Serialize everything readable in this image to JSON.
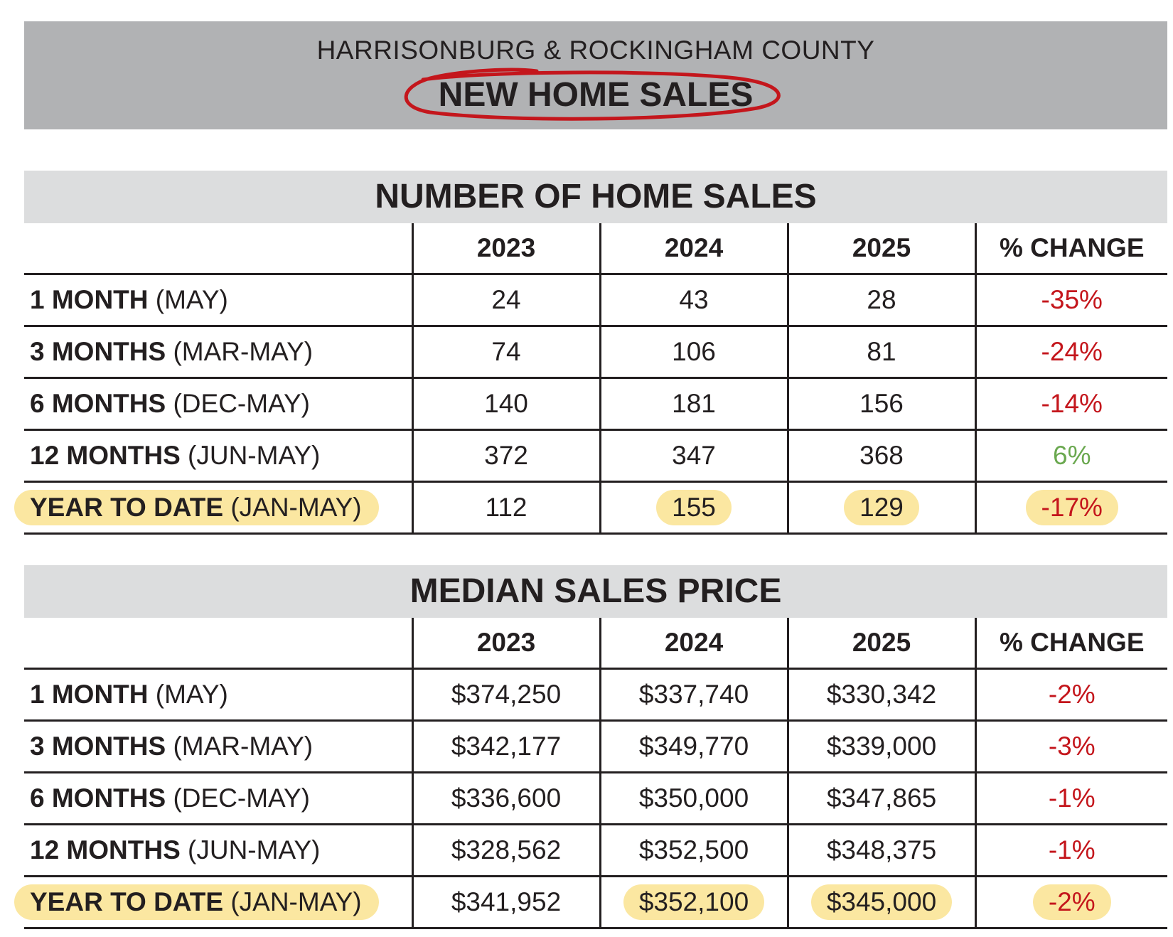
{
  "header": {
    "subtitle": "HARRISONBURG & ROCKINGHAM COUNTY",
    "title": "NEW HOME SALES"
  },
  "colors": {
    "negative": "#c4161c",
    "positive": "#6aa84f",
    "highlight": "#fbe7a1",
    "header_band": "#b1b2b4",
    "section_band": "#dcddde"
  },
  "tables": [
    {
      "title": "NUMBER OF HOME SALES",
      "columns": [
        "2023",
        "2024",
        "2025",
        "% CHANGE"
      ],
      "rows": [
        {
          "label_bold": "1 MONTH",
          "label_rest": " (MAY)",
          "values": [
            "24",
            "43",
            "28"
          ],
          "change": "-35%",
          "trend": "negative"
        },
        {
          "label_bold": "3 MONTHS",
          "label_rest": " (MAR-MAY)",
          "values": [
            "74",
            "106",
            "81"
          ],
          "change": "-24%",
          "trend": "negative"
        },
        {
          "label_bold": "6 MONTHS",
          "label_rest": " (DEC-MAY)",
          "values": [
            "140",
            "181",
            "156"
          ],
          "change": "-14%",
          "trend": "negative"
        },
        {
          "label_bold": "12 MONTHS",
          "label_rest": " (JUN-MAY)",
          "values": [
            "372",
            "347",
            "368"
          ],
          "change": "6%",
          "trend": "positive"
        },
        {
          "label_bold": "YEAR TO DATE",
          "label_rest": " (JAN-MAY)",
          "values": [
            "112",
            "155",
            "129"
          ],
          "change": "-17%",
          "trend": "negative"
        }
      ]
    },
    {
      "title": "MEDIAN SALES PRICE",
      "columns": [
        "2023",
        "2024",
        "2025",
        "% CHANGE"
      ],
      "rows": [
        {
          "label_bold": "1 MONTH",
          "label_rest": " (MAY)",
          "values": [
            "$374,250",
            "$337,740",
            "$330,342"
          ],
          "change": "-2%",
          "trend": "negative"
        },
        {
          "label_bold": "3 MONTHS",
          "label_rest": " (MAR-MAY)",
          "values": [
            "$342,177",
            "$349,770",
            "$339,000"
          ],
          "change": "-3%",
          "trend": "negative"
        },
        {
          "label_bold": "6 MONTHS",
          "label_rest": " (DEC-MAY)",
          "values": [
            "$336,600",
            "$350,000",
            "$347,865"
          ],
          "change": "-1%",
          "trend": "negative"
        },
        {
          "label_bold": "12 MONTHS",
          "label_rest": " (JUN-MAY)",
          "values": [
            "$328,562",
            "$352,500",
            "$348,375"
          ],
          "change": "-1%",
          "trend": "negative"
        },
        {
          "label_bold": "YEAR TO DATE",
          "label_rest": " (JAN-MAY)",
          "values": [
            "$341,952",
            "$352,100",
            "$345,000"
          ],
          "change": "-2%",
          "trend": "negative"
        }
      ]
    }
  ]
}
